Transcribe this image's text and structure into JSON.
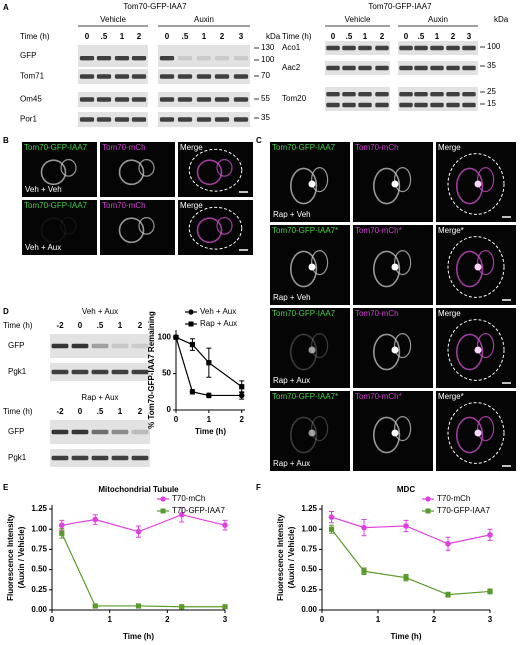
{
  "panels": {
    "A": {
      "label": "A",
      "left": {
        "title": "Tom70-GFP-IAA7",
        "groups": [
          "Vehicle",
          "Auxin"
        ],
        "time_label": "Time (h)",
        "lanes": [
          "0",
          ".5",
          "1",
          "2",
          "0",
          ".5",
          "1",
          "2",
          "3"
        ],
        "kda": "kDa",
        "rows": [
          "GFP",
          "Tom71",
          "Om45",
          "Por1"
        ],
        "markers": [
          "130",
          "100",
          "70",
          "55",
          "35"
        ]
      },
      "right": {
        "title": "Tom70-GFP-IAA7",
        "groups": [
          "Vehicle",
          "Auxin"
        ],
        "time_label": "Time (h)",
        "lanes": [
          "0",
          ".5",
          "1",
          "2",
          "0",
          ".5",
          "1",
          "2",
          "3"
        ],
        "kda": "kDa",
        "rows": [
          "Aco1",
          "Aac2",
          "Tom20"
        ],
        "markers": [
          "100",
          "35",
          "25",
          "15"
        ]
      }
    },
    "B": {
      "label": "B",
      "rows": [
        {
          "channels": [
            "Tom70-GFP-IAA7",
            "Tom70-mCh",
            "Merge"
          ],
          "condition": "Veh + Veh"
        },
        {
          "channels": [
            "Tom70-GFP-IAA7",
            "Tom70-mCh",
            "Merge"
          ],
          "condition": "Veh + Aux"
        }
      ]
    },
    "C": {
      "label": "C",
      "rows": [
        {
          "channels": [
            "Tom70-GFP-IAA7",
            "Tom70-mCh",
            "Merge"
          ],
          "condition": "Rap + Veh"
        },
        {
          "channels": [
            "Tom70-GFP-IAA7*",
            "Tom70-mCh*",
            "Merge*"
          ],
          "condition": "Rap + Veh"
        },
        {
          "channels": [
            "Tom70-GFP-IAA7",
            "Tom70-mCh",
            "Merge"
          ],
          "condition": "Rap + Aux"
        },
        {
          "channels": [
            "Tom70-GFP-IAA7*",
            "Tom70-mCh*",
            "Merge*"
          ],
          "condition": "Rap + Aux"
        }
      ]
    },
    "D": {
      "label": "D",
      "blots": [
        {
          "title": "Veh + Aux",
          "time_label": "Time (h)",
          "lanes": [
            "-2",
            "0",
            ".5",
            "1",
            "2"
          ],
          "rows": [
            "GFP",
            "Pgk1"
          ]
        },
        {
          "title": "Rap + Aux",
          "time_label": "Time (h)",
          "lanes": [
            "-2",
            "0",
            ".5",
            "1",
            "2"
          ],
          "rows": [
            "GFP",
            "Pgk1"
          ]
        }
      ]
    },
    "E": {
      "label": "E"
    },
    "F": {
      "label": "F"
    }
  },
  "chart_data": [
    {
      "type": "line",
      "xlabel": "Time (h)",
      "ylabel": "% Tom70-GFP-IAA7 Remaining",
      "x": [
        0,
        0.5,
        1,
        2
      ],
      "xlim": [
        0,
        2.1
      ],
      "xticks": [
        0,
        1,
        2
      ],
      "ylim": [
        0,
        110
      ],
      "yticks": [
        0,
        50,
        100
      ],
      "legend": "upper right",
      "series": [
        {
          "name": "Veh + Aux",
          "color": "#000000",
          "marker": "circle",
          "values": [
            100,
            25,
            20,
            20
          ],
          "errors": [
            0,
            3,
            3,
            5
          ]
        },
        {
          "name": "Rap + Aux",
          "color": "#000000",
          "marker": "square",
          "values": [
            100,
            90,
            65,
            32
          ],
          "errors": [
            0,
            8,
            20,
            8
          ]
        }
      ]
    },
    {
      "type": "line",
      "title": "Mitochondrial Tubule",
      "xlabel": "Time (h)",
      "ylabel": "Fluorescence Intensity (Auxin / Vehicle)",
      "x": [
        0.17,
        0.75,
        1.5,
        2.25,
        3
      ],
      "xlim": [
        0,
        3
      ],
      "xticks": [
        0,
        1,
        2,
        3
      ],
      "ylim": [
        0,
        1.3
      ],
      "yticks": [
        {
          "value": 0,
          "label": "0.00"
        },
        {
          "value": 0.25,
          "label": "0.25"
        },
        {
          "value": 0.5,
          "label": "0.50"
        },
        {
          "value": 0.75,
          "label": "0.75"
        },
        {
          "value": 1,
          "label": "1.00"
        },
        {
          "value": 1.25,
          "label": "1.25"
        }
      ],
      "legend": "upper right",
      "series": [
        {
          "name": "T70-mCh",
          "color": "#e040e0",
          "marker": "circle",
          "values": [
            1.05,
            1.12,
            0.97,
            1.18,
            1.05
          ],
          "errors": [
            0.06,
            0.06,
            0.07,
            0.09,
            0.06
          ]
        },
        {
          "name": "T70-GFP-IAA7",
          "color": "#5a9a2a",
          "marker": "square",
          "values": [
            0.95,
            0.05,
            0.05,
            0.04,
            0.04
          ],
          "errors": [
            0.06,
            0.01,
            0.01,
            0.01,
            0.01
          ]
        }
      ]
    },
    {
      "type": "line",
      "title": "MDC",
      "xlabel": "Time (h)",
      "ylabel": "Fluorescence Intensity (Auxin / Vehicle)",
      "x": [
        0.17,
        0.75,
        1.5,
        2.25,
        3
      ],
      "xlim": [
        0,
        3
      ],
      "xticks": [
        0,
        1,
        2,
        3
      ],
      "ylim": [
        0,
        1.3
      ],
      "yticks": [
        {
          "value": 0,
          "label": "0.00"
        },
        {
          "value": 0.25,
          "label": "0.25"
        },
        {
          "value": 0.5,
          "label": "0.50"
        },
        {
          "value": 0.75,
          "label": "0.75"
        },
        {
          "value": 1,
          "label": "1.00"
        },
        {
          "value": 1.25,
          "label": "1.25"
        }
      ],
      "legend": "upper right",
      "series": [
        {
          "name": "T70-mCh",
          "color": "#e040e0",
          "marker": "circle",
          "values": [
            1.15,
            1.02,
            1.04,
            0.82,
            0.93
          ],
          "errors": [
            0.07,
            0.1,
            0.07,
            0.08,
            0.07
          ]
        },
        {
          "name": "T70-GFP-IAA7",
          "color": "#5a9a2a",
          "marker": "square",
          "values": [
            1.0,
            0.48,
            0.4,
            0.19,
            0.23
          ],
          "errors": [
            0.05,
            0.04,
            0.04,
            0.03,
            0.03
          ]
        }
      ]
    }
  ]
}
